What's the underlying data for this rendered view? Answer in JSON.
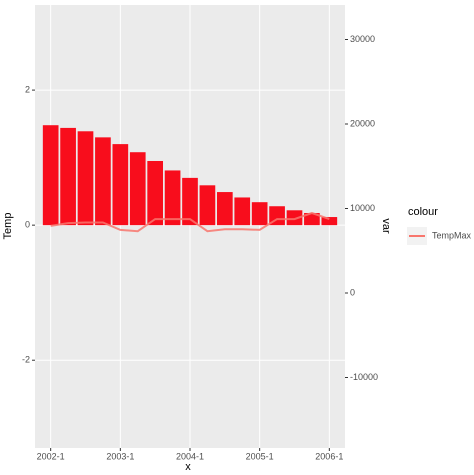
{
  "chart_data": {
    "type": "bar",
    "categories": [
      "2002-1",
      null,
      null,
      null,
      "2003-1",
      null,
      null,
      null,
      "2004-1",
      null,
      null,
      null,
      "2005-1",
      null,
      null,
      null,
      "2006-1"
    ],
    "values": [
      1.48,
      1.44,
      1.39,
      1.3,
      1.2,
      1.08,
      0.95,
      0.81,
      0.7,
      0.59,
      0.49,
      0.41,
      0.34,
      0.28,
      0.22,
      0.18,
      0.12
    ],
    "color": "#f80d1c",
    "series": [
      {
        "name": "TempMax",
        "type": "line",
        "color": "#f8766d",
        "values": [
          -0.01,
          0.03,
          0.04,
          0.04,
          -0.07,
          -0.09,
          0.09,
          0.09,
          0.09,
          -0.09,
          -0.06,
          -0.06,
          -0.07,
          0.09,
          0.09,
          0.18,
          0.09
        ]
      }
    ],
    "xlabel": "x",
    "ylabel": "Temp",
    "y2label": "var",
    "legend_title": "colour",
    "ylim": [
      -3.3,
      3.26
    ],
    "yticks": [
      -2,
      0,
      2
    ],
    "y2lim": [
      -18343,
      34083
    ],
    "y2ticks": [
      -10000,
      0,
      10000,
      20000,
      30000
    ],
    "grid": true
  }
}
